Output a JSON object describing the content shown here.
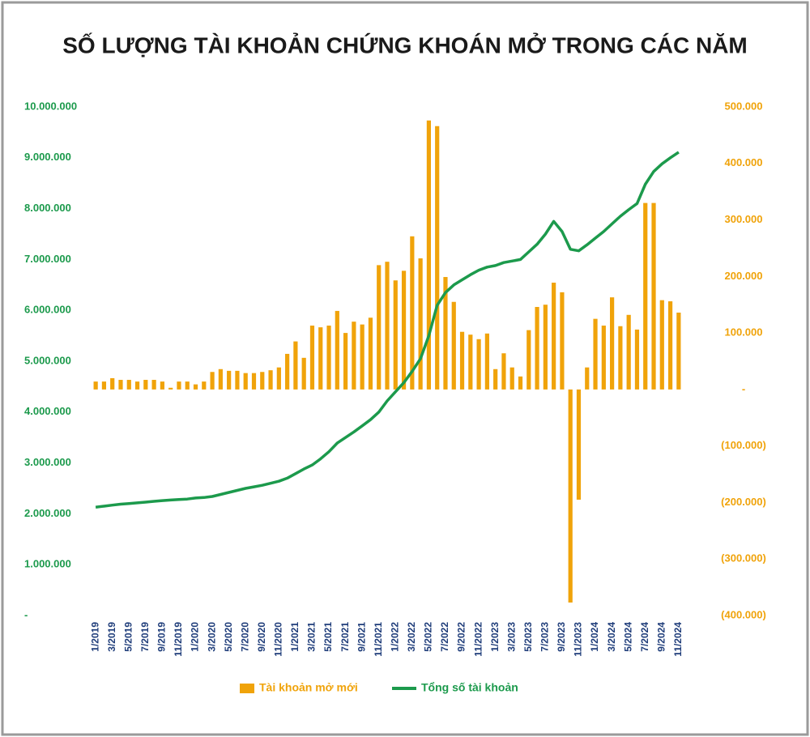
{
  "chart_data": {
    "type": "bar-line",
    "title": "SỐ LƯỢNG TÀI KHOẢN CHỨNG KHOÁN MỞ TRONG CÁC NĂM",
    "categories": [
      "1/2019",
      null,
      "3/2019",
      null,
      "5/2019",
      null,
      "7/2019",
      null,
      "9/2019",
      null,
      "11/2019",
      null,
      "1/2020",
      null,
      "3/2020",
      null,
      "5/2020",
      null,
      "7/2020",
      null,
      "9/2020",
      null,
      "11/2020",
      null,
      "1/2021",
      null,
      "3/2021",
      null,
      "5/2021",
      null,
      "7/2021",
      null,
      "9/2021",
      null,
      "11/2021",
      null,
      "1/2022",
      null,
      "3/2022",
      null,
      "5/2022",
      null,
      "7/2022",
      null,
      "9/2022",
      null,
      "11/2022",
      null,
      "1/2023",
      null,
      "3/2023",
      null,
      "5/2023",
      null,
      "7/2023",
      null,
      "9/2023",
      null,
      "11/2023",
      null,
      "1/2024",
      null,
      "3/2024",
      null,
      "5/2024",
      null,
      "7/2024",
      null,
      "9/2024",
      null,
      "11/2024"
    ],
    "series": [
      {
        "name": "Tài khoản mở mới",
        "color": "#f0a30a",
        "axis": "y2",
        "values": [
          14000,
          14000,
          20000,
          17000,
          17000,
          14000,
          17000,
          17000,
          14000,
          3000,
          14000,
          14000,
          9000,
          14000,
          31000,
          36000,
          33000,
          33000,
          29000,
          29000,
          31000,
          34000,
          39000,
          63000,
          85000,
          56000,
          113000,
          110000,
          113000,
          139000,
          100000,
          120000,
          115000,
          127000,
          220000,
          226000,
          193000,
          210000,
          271000,
          232000,
          476000,
          466000,
          199000,
          155000,
          102000,
          97000,
          89000,
          99000,
          36000,
          64000,
          39000,
          23000,
          105000,
          146000,
          150000,
          189000,
          172000,
          -377000,
          -195000,
          39000,
          125000,
          113000,
          163000,
          112000,
          132000,
          106000,
          330000,
          330000,
          158000,
          156000,
          136000
        ]
      },
      {
        "name": "Tổng số tài khoản",
        "color": "#1c9a4c",
        "values": [
          2130000,
          2150000,
          2170000,
          2190000,
          2200000,
          2215000,
          2230000,
          2245000,
          2260000,
          2270000,
          2280000,
          2290000,
          2310000,
          2320000,
          2340000,
          2380000,
          2420000,
          2460000,
          2500000,
          2530000,
          2560000,
          2600000,
          2640000,
          2700000,
          2790000,
          2880000,
          2960000,
          3080000,
          3220000,
          3390000,
          3500000,
          3610000,
          3730000,
          3850000,
          4000000,
          4220000,
          4400000,
          4580000,
          4800000,
          5050000,
          5500000,
          6100000,
          6350000,
          6500000,
          6600000,
          6700000,
          6790000,
          6850000,
          6880000,
          6940000,
          6970000,
          7000000,
          7150000,
          7300000,
          7500000,
          7750000,
          7550000,
          7200000,
          7170000,
          7290000,
          7420000,
          7550000,
          7700000,
          7850000,
          7980000,
          8100000,
          8480000,
          8730000,
          8880000,
          9000000,
          9110000
        ]
      }
    ],
    "ylim": [
      0,
      10000000
    ],
    "yticks": [
      {
        "value": 0,
        "label": "-"
      },
      {
        "value": 1000000,
        "label": "1.000.000"
      },
      {
        "value": 2000000,
        "label": "2.000.000"
      },
      {
        "value": 3000000,
        "label": "3.000.000"
      },
      {
        "value": 4000000,
        "label": "4.000.000"
      },
      {
        "value": 5000000,
        "label": "5.000.000"
      },
      {
        "value": 6000000,
        "label": "6.000.000"
      },
      {
        "value": 7000000,
        "label": "7.000.000"
      },
      {
        "value": 8000000,
        "label": "8.000.000"
      },
      {
        "value": 9000000,
        "label": "9.000.000"
      },
      {
        "value": 10000000,
        "label": "10.000.000"
      }
    ],
    "y2lim": [
      -400000,
      500000
    ],
    "y2ticks": [
      {
        "value": -400000,
        "label": "(400.000)"
      },
      {
        "value": -300000,
        "label": "(300.000)"
      },
      {
        "value": -200000,
        "label": "(200.000)"
      },
      {
        "value": -100000,
        "label": "(100.000)"
      },
      {
        "value": 0,
        "label": "-"
      },
      {
        "value": 100000,
        "label": "100.000"
      },
      {
        "value": 200000,
        "label": "200.000"
      },
      {
        "value": 300000,
        "label": "300.000"
      },
      {
        "value": 400000,
        "label": "400.000"
      },
      {
        "value": 500000,
        "label": "500.000"
      }
    ],
    "grid": false,
    "legend": "bottom"
  }
}
